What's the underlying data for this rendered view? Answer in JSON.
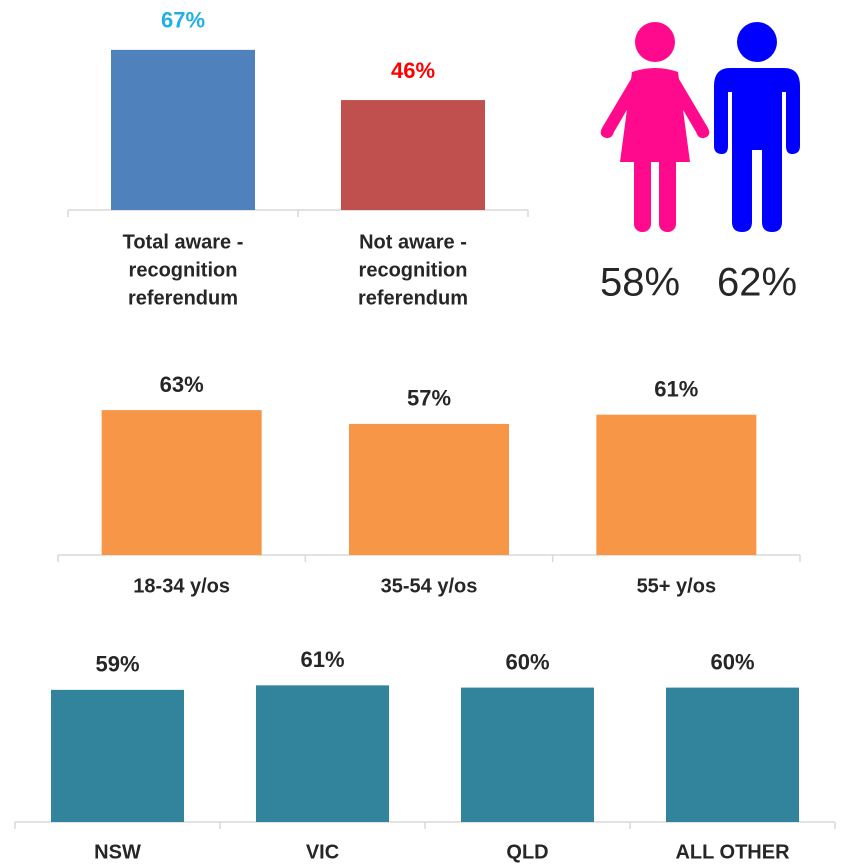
{
  "chart_data": [
    {
      "type": "bar",
      "categories": [
        [
          "Total aware -",
          "recognition",
          "referendum"
        ],
        [
          "Not aware -",
          "recognition",
          "referendum"
        ]
      ],
      "values": [
        67,
        46
      ],
      "value_labels": [
        "67%",
        "46%"
      ],
      "colors": [
        "#4f81bd",
        "#c0504d"
      ],
      "label_colors": [
        "#1fb0e6",
        "#ff0000"
      ]
    },
    {
      "type": "icon",
      "values": [
        58,
        62
      ],
      "value_labels": [
        "58%",
        "62%"
      ],
      "colors": [
        "#ff0a8c",
        "#0000ff"
      ]
    },
    {
      "type": "bar",
      "categories": [
        [
          "18-34 y/os"
        ],
        [
          "35-54 y/os"
        ],
        [
          "55+ y/os"
        ]
      ],
      "values": [
        63,
        57,
        61
      ],
      "value_labels": [
        "63%",
        "57%",
        "61%"
      ],
      "colors": [
        "#f79646",
        "#f79646",
        "#f79646"
      ],
      "label_colors": [
        "#262626",
        "#262626",
        "#262626"
      ]
    },
    {
      "type": "bar",
      "categories": [
        [
          "NSW"
        ],
        [
          "VIC"
        ],
        [
          "QLD"
        ],
        [
          "ALL OTHER"
        ]
      ],
      "values": [
        59,
        61,
        60,
        60
      ],
      "value_labels": [
        "59%",
        "61%",
        "60%",
        "60%"
      ],
      "colors": [
        "#31849b",
        "#31849b",
        "#31849b",
        "#31849b"
      ],
      "label_colors": [
        "#262626",
        "#262626",
        "#262626",
        "#262626"
      ]
    }
  ]
}
